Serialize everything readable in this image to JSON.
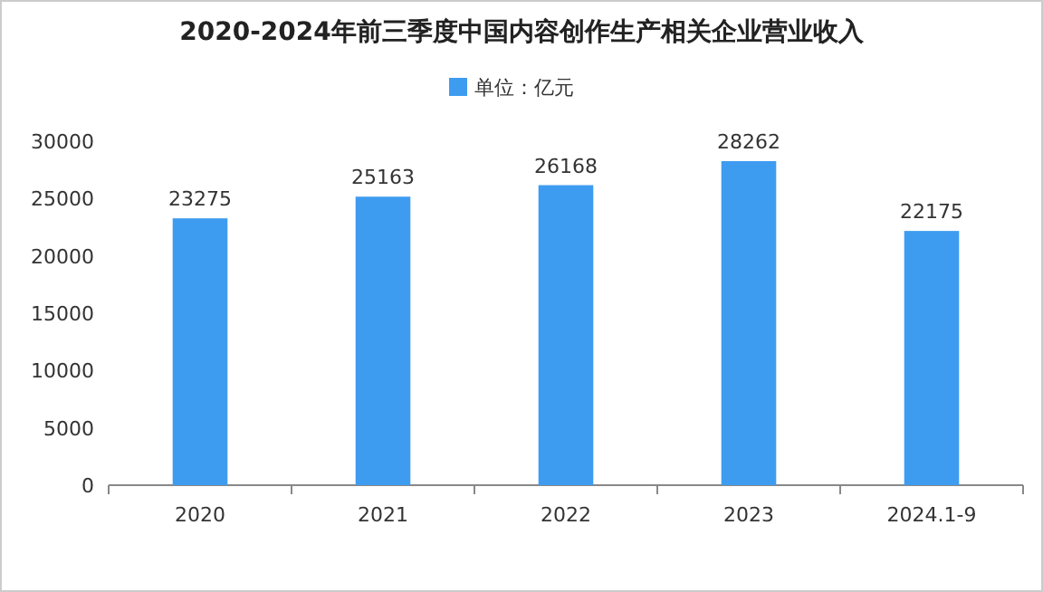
{
  "chart_data": {
    "type": "bar",
    "title": "2020-2024年前三季度中国内容创作生产相关企业营业收入",
    "categories": [
      "2020",
      "2021",
      "2022",
      "2023",
      "2024.1-9"
    ],
    "series": [
      {
        "name": "单位：亿元",
        "color": "#3e9cf0",
        "values": [
          23275,
          25163,
          26168,
          28262,
          22175
        ]
      }
    ],
    "ylim": [
      0,
      30000
    ],
    "yticks": [
      0,
      5000,
      10000,
      15000,
      20000,
      25000,
      30000
    ],
    "data_labels": true,
    "grid": false,
    "legend": "top"
  }
}
